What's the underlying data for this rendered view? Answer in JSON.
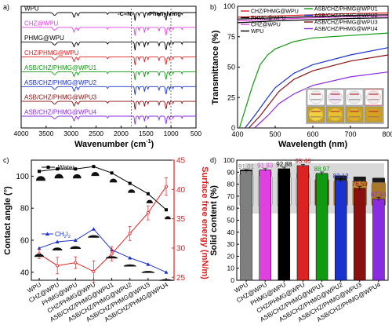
{
  "panels": {
    "a": {
      "letter": "a)"
    },
    "b": {
      "letter": "b)"
    },
    "c": {
      "letter": "c)"
    },
    "d": {
      "letter": "d)"
    }
  },
  "chart_data": [
    {
      "panel": "a",
      "type": "line",
      "xlabel": "Wavenumber (cm",
      "xlabel_sup": "-1",
      "xlabel_end": ")",
      "ylabel": "",
      "xlim": [
        4000,
        500
      ],
      "x_ticks": [
        4000,
        3500,
        3000,
        2500,
        2000,
        1500,
        1000,
        500
      ],
      "annotations": [
        "-C≡N-",
        "Phenyl ring"
      ],
      "annotation_positions_cm": [
        1700,
        800
      ],
      "series": [
        {
          "name": "WPU",
          "color": "#000000"
        },
        {
          "name": "CHZ@WPU",
          "color": "#e040e0"
        },
        {
          "name": "PHMG@WPU",
          "color": "#000000"
        },
        {
          "name": "CHZ/PHMG@WPU",
          "color": "#dd2222"
        },
        {
          "name": "ASB/CHZ/PHMG@WPU1",
          "color": "#119911"
        },
        {
          "name": "ASB/CHZ/PHMG@WPU2",
          "color": "#1a33cc"
        },
        {
          "name": "ASB/CHZ/PHMG@WPU3",
          "color": "#8a1010"
        },
        {
          "name": "ASB/CHZ/PHMG@WPU4",
          "color": "#8a2be2"
        }
      ]
    },
    {
      "panel": "b",
      "type": "line",
      "xlabel": "Wavelength (nm)",
      "ylabel": "Transmittance (%)",
      "xlim": [
        400,
        800
      ],
      "ylim": [
        0,
        100
      ],
      "x_ticks": [
        400,
        500,
        600,
        700,
        800
      ],
      "y_ticks": [
        0,
        25,
        50,
        75,
        100
      ],
      "series": [
        {
          "name": "CHZ/PHMG@WPU",
          "color": "#dd2222",
          "x": [
            400,
            500,
            600,
            700,
            800
          ],
          "y": [
            91,
            92,
            93,
            94,
            94.5
          ]
        },
        {
          "name": "PHMG@WPU",
          "color": "#000000",
          "x": [
            400,
            500,
            600,
            700,
            800
          ],
          "y": [
            89.5,
            90.5,
            91.5,
            92.5,
            93
          ]
        },
        {
          "name": "CHZ@WPU",
          "color": "#e040e0",
          "x": [
            400,
            500,
            600,
            700,
            800
          ],
          "y": [
            88,
            89.5,
            90.5,
            91.5,
            92
          ]
        },
        {
          "name": "WPU",
          "color": "#000000",
          "x": [
            400,
            500,
            600,
            700,
            800
          ],
          "y": [
            86.5,
            88,
            89,
            90,
            90.5
          ]
        },
        {
          "name": "ASB/CHZ/PHMG@WPU1",
          "color": "#119911",
          "x": [
            405,
            420,
            440,
            460,
            480,
            500,
            550,
            600,
            700,
            800
          ],
          "y": [
            0,
            15,
            35,
            52,
            60,
            65,
            71,
            74,
            76,
            78
          ]
        },
        {
          "name": "ASB/CHZ/PHMG@WPU2",
          "color": "#1a33cc",
          "x": [
            420,
            450,
            480,
            500,
            550,
            600,
            700,
            800
          ],
          "y": [
            0,
            12,
            25,
            33,
            45,
            52,
            60,
            66
          ]
        },
        {
          "name": "ASB/CHZ/PHMG@WPU3",
          "color": "#8a1010",
          "x": [
            430,
            460,
            490,
            510,
            550,
            600,
            700,
            800
          ],
          "y": [
            0,
            10,
            22,
            30,
            40,
            47,
            55,
            60
          ]
        },
        {
          "name": "ASB/CHZ/PHMG@WPU4",
          "color": "#8a2be2",
          "x": [
            445,
            480,
            510,
            550,
            600,
            700,
            800
          ],
          "y": [
            0,
            10,
            20,
            28,
            35,
            42,
            46
          ]
        }
      ]
    },
    {
      "panel": "c",
      "type": "line",
      "ylabel": "Contact angle (°)",
      "y2label": "Surface free energy (mN/m)",
      "ylim": [
        35,
        110
      ],
      "y_ticks": [
        40,
        60,
        80,
        100
      ],
      "y2lim": [
        24.5,
        45
      ],
      "y2_ticks": [
        25,
        30,
        35,
        40,
        45
      ],
      "categories": [
        "WPU",
        "CHZ@WPU",
        "PHMG@WPU",
        "CHZ/PHMG@WPU",
        "ASB/CHZ/PHMG@WPU1",
        "ASB/CHZ/PHMG@WPU2",
        "ASB/CHZ/PHMG@WPU3",
        "ASB/CHZ/PHMG@WPU4"
      ],
      "series": [
        {
          "name": "Water",
          "color": "#000000",
          "values": [
            103,
            104.5,
            104.5,
            106,
            102,
            95.5,
            89,
            79
          ]
        },
        {
          "name": "CH2I2",
          "name_base": "CH",
          "name_sub1": "2",
          "name_mid": "I",
          "name_sub2": "2",
          "color": "#1a33cc",
          "values": [
            55,
            59,
            60,
            67,
            54,
            49,
            45,
            40
          ]
        },
        {
          "name": "Surface free energy",
          "color": "#dd2222",
          "values": [
            29,
            27,
            27.5,
            26,
            29,
            32.5,
            36,
            40.5
          ],
          "error": [
            0.8,
            1.4,
            1.0,
            1.8,
            1.2,
            1.2,
            1.2,
            1.5
          ]
        }
      ]
    },
    {
      "panel": "d",
      "type": "bar",
      "ylabel": "Solid content (%)",
      "ylim": [
        0,
        100
      ],
      "y_ticks": [
        0,
        10,
        20,
        30,
        40,
        50,
        60,
        70,
        80,
        90,
        100
      ],
      "categories": [
        "WPU",
        "CHZ@WPU",
        "PHMG@WPU",
        "CHZ/PHMG@WPU",
        "ASB/CHZ/PHMG@WPU1",
        "ASB/CHZ/PHMG@WPU2",
        "ASB/CHZ/PHMG@WPU3",
        "ASB/CHZ/PHMG@WPU4"
      ],
      "values": [
        91.01,
        91.93,
        92.88,
        95.46,
        88.97,
        83.12,
        76.59,
        67.54
      ],
      "value_labels": [
        "91.01",
        "91.93",
        "92.88",
        "95.46",
        "88.97",
        "83.12",
        "76.59",
        "67.54"
      ],
      "colors": [
        "#7f7f7f",
        "#e040e0",
        "#000000",
        "#dd2222",
        "#119911",
        "#1a33cc",
        "#8a1010",
        "#8a2be2"
      ],
      "error": [
        1.2,
        1.0,
        1.2,
        1.0,
        1.2,
        1.5,
        1.5,
        1.6
      ]
    }
  ]
}
